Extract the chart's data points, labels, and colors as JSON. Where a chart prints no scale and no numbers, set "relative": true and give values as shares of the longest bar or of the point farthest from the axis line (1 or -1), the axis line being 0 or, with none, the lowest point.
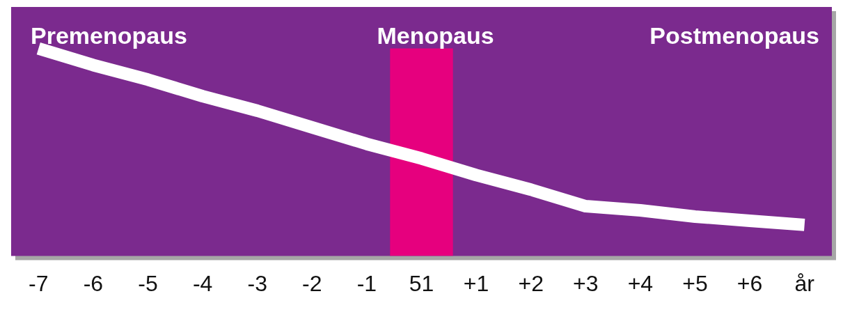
{
  "chart_data": {
    "type": "line",
    "relative": true,
    "categories": [
      "-7",
      "-6",
      "-5",
      "-4",
      "-3",
      "-2",
      "-1",
      "51",
      "+1",
      "+2",
      "+3",
      "+4",
      "+5",
      "+6",
      "år"
    ],
    "series": [
      {
        "type": "bar",
        "color": "#e6007e",
        "values": [
          null,
          null,
          null,
          null,
          null,
          null,
          null,
          1.0,
          null,
          null,
          null,
          null,
          null,
          null,
          null
        ]
      },
      {
        "color": "#ffffff",
        "values": [
          1.0,
          0.92,
          0.85,
          0.77,
          0.7,
          0.62,
          0.54,
          0.47,
          0.39,
          0.32,
          0.24,
          0.22,
          0.19,
          0.17,
          0.15
        ]
      }
    ],
    "annotations": [
      "Premenopaus",
      "Menopaus",
      "Postmenopaus"
    ],
    "grid": false,
    "legend": false,
    "marker": "none",
    "line_style": "solid",
    "tick_labels": "x"
  }
}
